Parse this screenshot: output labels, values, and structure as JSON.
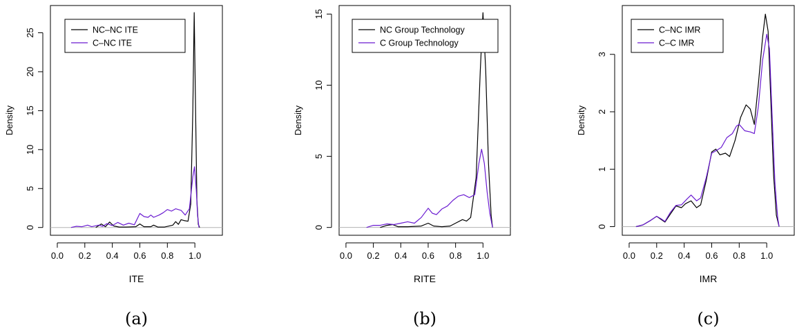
{
  "chart_data": [
    {
      "type": "line",
      "caption": "(a)",
      "xlabel": "ITE",
      "ylabel": "Density",
      "x_ticks": [
        0.0,
        0.2,
        0.4,
        0.6,
        0.8,
        1.0
      ],
      "y_ticks": [
        0,
        5,
        10,
        15,
        20,
        25
      ],
      "xlim": [
        -0.05,
        1.2
      ],
      "ylim": [
        -1.0,
        28.5
      ],
      "legend_position": "top-left",
      "baseline": 0,
      "series": [
        {
          "name": "NC–NC ITE",
          "color": "#000000",
          "points": [
            [
              0.28,
              0
            ],
            [
              0.32,
              0.45
            ],
            [
              0.35,
              0.1
            ],
            [
              0.38,
              0.7
            ],
            [
              0.41,
              0.2
            ],
            [
              0.45,
              0.05
            ],
            [
              0.5,
              0.05
            ],
            [
              0.57,
              0.1
            ],
            [
              0.6,
              0.45
            ],
            [
              0.63,
              0.1
            ],
            [
              0.68,
              0.1
            ],
            [
              0.7,
              0.3
            ],
            [
              0.73,
              0.05
            ],
            [
              0.78,
              0.05
            ],
            [
              0.84,
              0.3
            ],
            [
              0.86,
              0.75
            ],
            [
              0.88,
              0.4
            ],
            [
              0.9,
              1.0
            ],
            [
              0.92,
              0.9
            ],
            [
              0.95,
              0.8
            ],
            [
              0.97,
              3.0
            ],
            [
              0.985,
              15.0
            ],
            [
              0.995,
              27.6
            ],
            [
              1.005,
              15.0
            ],
            [
              1.015,
              3.5
            ],
            [
              1.025,
              0.4
            ],
            [
              1.035,
              0
            ]
          ]
        },
        {
          "name": "C–NC ITE",
          "color": "#6a1bd1",
          "points": [
            [
              0.1,
              0
            ],
            [
              0.14,
              0.15
            ],
            [
              0.18,
              0.1
            ],
            [
              0.22,
              0.3
            ],
            [
              0.25,
              0.1
            ],
            [
              0.3,
              0.3
            ],
            [
              0.33,
              0.15
            ],
            [
              0.36,
              0.5
            ],
            [
              0.4,
              0.25
            ],
            [
              0.44,
              0.65
            ],
            [
              0.48,
              0.3
            ],
            [
              0.52,
              0.55
            ],
            [
              0.56,
              0.35
            ],
            [
              0.6,
              1.8
            ],
            [
              0.63,
              1.4
            ],
            [
              0.66,
              1.3
            ],
            [
              0.68,
              1.6
            ],
            [
              0.7,
              1.3
            ],
            [
              0.74,
              1.6
            ],
            [
              0.77,
              1.9
            ],
            [
              0.8,
              2.3
            ],
            [
              0.83,
              2.1
            ],
            [
              0.86,
              2.4
            ],
            [
              0.9,
              2.2
            ],
            [
              0.93,
              1.6
            ],
            [
              0.96,
              2.4
            ],
            [
              0.985,
              6.5
            ],
            [
              0.997,
              7.8
            ],
            [
              1.01,
              4.8
            ],
            [
              1.02,
              1.5
            ],
            [
              1.03,
              0
            ]
          ]
        }
      ]
    },
    {
      "type": "line",
      "caption": "(b)",
      "xlabel": "RITE",
      "ylabel": "Density",
      "x_ticks": [
        0.0,
        0.2,
        0.4,
        0.6,
        0.8,
        1.0
      ],
      "y_ticks": [
        0,
        5,
        10,
        15
      ],
      "xlim": [
        -0.05,
        1.2
      ],
      "ylim": [
        -0.55,
        15.6
      ],
      "legend_position": "top-left",
      "baseline": 0,
      "series": [
        {
          "name": "NC Group Technology",
          "color": "#000000",
          "points": [
            [
              0.25,
              0
            ],
            [
              0.3,
              0.15
            ],
            [
              0.34,
              0.2
            ],
            [
              0.38,
              0.05
            ],
            [
              0.45,
              0.05
            ],
            [
              0.55,
              0.1
            ],
            [
              0.6,
              0.3
            ],
            [
              0.64,
              0.1
            ],
            [
              0.7,
              0.05
            ],
            [
              0.76,
              0.1
            ],
            [
              0.8,
              0.3
            ],
            [
              0.85,
              0.55
            ],
            [
              0.88,
              0.45
            ],
            [
              0.91,
              0.7
            ],
            [
              0.95,
              3.5
            ],
            [
              0.98,
              11.0
            ],
            [
              1.0,
              15.1
            ],
            [
              1.02,
              11.0
            ],
            [
              1.04,
              4.5
            ],
            [
              1.06,
              0.8
            ],
            [
              1.07,
              0
            ]
          ]
        },
        {
          "name": "C Group Technology",
          "color": "#6a1bd1",
          "points": [
            [
              0.15,
              0
            ],
            [
              0.2,
              0.15
            ],
            [
              0.25,
              0.15
            ],
            [
              0.3,
              0.25
            ],
            [
              0.35,
              0.2
            ],
            [
              0.4,
              0.3
            ],
            [
              0.45,
              0.4
            ],
            [
              0.5,
              0.3
            ],
            [
              0.55,
              0.7
            ],
            [
              0.6,
              1.35
            ],
            [
              0.63,
              1.0
            ],
            [
              0.66,
              0.9
            ],
            [
              0.7,
              1.3
            ],
            [
              0.74,
              1.5
            ],
            [
              0.78,
              1.9
            ],
            [
              0.82,
              2.2
            ],
            [
              0.86,
              2.3
            ],
            [
              0.9,
              2.1
            ],
            [
              0.94,
              2.3
            ],
            [
              0.97,
              4.5
            ],
            [
              0.99,
              5.5
            ],
            [
              1.01,
              4.5
            ],
            [
              1.03,
              2.5
            ],
            [
              1.05,
              1.0
            ],
            [
              1.07,
              0
            ]
          ]
        }
      ]
    },
    {
      "type": "line",
      "caption": "(c)",
      "xlabel": "IMR",
      "ylabel": "Density",
      "x_ticks": [
        0.0,
        0.2,
        0.4,
        0.6,
        0.8,
        1.0
      ],
      "y_ticks": [
        0,
        1,
        2,
        3
      ],
      "xlim": [
        -0.05,
        1.2
      ],
      "ylim": [
        -0.15,
        3.85
      ],
      "legend_position": "top-left",
      "baseline": 0,
      "series": [
        {
          "name": "C–NC IMR",
          "color": "#000000",
          "points": [
            [
              0.05,
              0
            ],
            [
              0.1,
              0.03
            ],
            [
              0.15,
              0.1
            ],
            [
              0.2,
              0.18
            ],
            [
              0.23,
              0.13
            ],
            [
              0.26,
              0.08
            ],
            [
              0.3,
              0.22
            ],
            [
              0.34,
              0.36
            ],
            [
              0.38,
              0.33
            ],
            [
              0.41,
              0.4
            ],
            [
              0.45,
              0.45
            ],
            [
              0.49,
              0.33
            ],
            [
              0.52,
              0.38
            ],
            [
              0.56,
              0.8
            ],
            [
              0.6,
              1.3
            ],
            [
              0.63,
              1.35
            ],
            [
              0.66,
              1.25
            ],
            [
              0.7,
              1.28
            ],
            [
              0.73,
              1.22
            ],
            [
              0.77,
              1.5
            ],
            [
              0.81,
              1.9
            ],
            [
              0.85,
              2.12
            ],
            [
              0.88,
              2.05
            ],
            [
              0.91,
              1.78
            ],
            [
              0.94,
              2.5
            ],
            [
              0.97,
              3.3
            ],
            [
              0.99,
              3.7
            ],
            [
              1.01,
              3.4
            ],
            [
              1.03,
              2.2
            ],
            [
              1.05,
              0.9
            ],
            [
              1.07,
              0.2
            ],
            [
              1.09,
              0
            ]
          ]
        },
        {
          "name": "C–C IMR",
          "color": "#6a1bd1",
          "points": [
            [
              0.05,
              0
            ],
            [
              0.1,
              0.03
            ],
            [
              0.15,
              0.1
            ],
            [
              0.2,
              0.18
            ],
            [
              0.23,
              0.14
            ],
            [
              0.26,
              0.09
            ],
            [
              0.3,
              0.25
            ],
            [
              0.34,
              0.37
            ],
            [
              0.38,
              0.38
            ],
            [
              0.42,
              0.48
            ],
            [
              0.45,
              0.55
            ],
            [
              0.49,
              0.45
            ],
            [
              0.52,
              0.5
            ],
            [
              0.56,
              0.85
            ],
            [
              0.6,
              1.28
            ],
            [
              0.63,
              1.32
            ],
            [
              0.67,
              1.38
            ],
            [
              0.71,
              1.55
            ],
            [
              0.75,
              1.62
            ],
            [
              0.78,
              1.75
            ],
            [
              0.8,
              1.78
            ],
            [
              0.84,
              1.67
            ],
            [
              0.88,
              1.65
            ],
            [
              0.91,
              1.62
            ],
            [
              0.94,
              2.1
            ],
            [
              0.97,
              2.9
            ],
            [
              1.0,
              3.35
            ],
            [
              1.02,
              3.1
            ],
            [
              1.04,
              1.9
            ],
            [
              1.06,
              0.75
            ],
            [
              1.08,
              0.15
            ],
            [
              1.09,
              0
            ]
          ]
        }
      ]
    }
  ]
}
